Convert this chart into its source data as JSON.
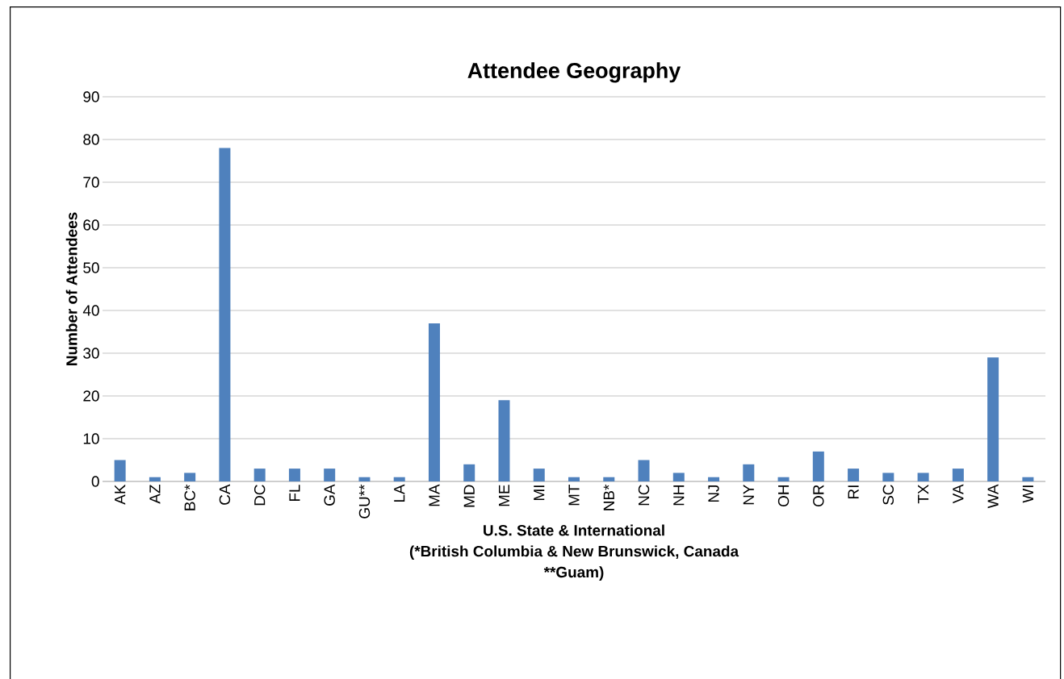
{
  "chart_data": {
    "type": "bar",
    "title": "Attendee Geography",
    "xlabel": "U.S. State & International",
    "ylabel": "Number of Attendees",
    "annotations": [
      "(*British Columbia & New Brunswick, Canada",
      "**Guam)"
    ],
    "categories": [
      "AK",
      "AZ",
      "BC*",
      "CA",
      "DC",
      "FL",
      "GA",
      "GU**",
      "LA",
      "MA",
      "MD",
      "ME",
      "MI",
      "MT",
      "NB*",
      "NC",
      "NH",
      "NJ",
      "NY",
      "OH",
      "OR",
      "RI",
      "SC",
      "TX",
      "VA",
      "WA",
      "WI"
    ],
    "values": [
      5,
      1,
      2,
      78,
      3,
      3,
      3,
      1,
      1,
      37,
      4,
      19,
      3,
      1,
      1,
      5,
      2,
      1,
      4,
      1,
      7,
      3,
      2,
      2,
      3,
      29,
      1
    ],
    "color": "#4f81bd",
    "ylim": [
      0,
      90
    ],
    "yticks": [
      0,
      10,
      20,
      30,
      40,
      50,
      60,
      70,
      80,
      90
    ],
    "grid": "y",
    "legend": false
  }
}
